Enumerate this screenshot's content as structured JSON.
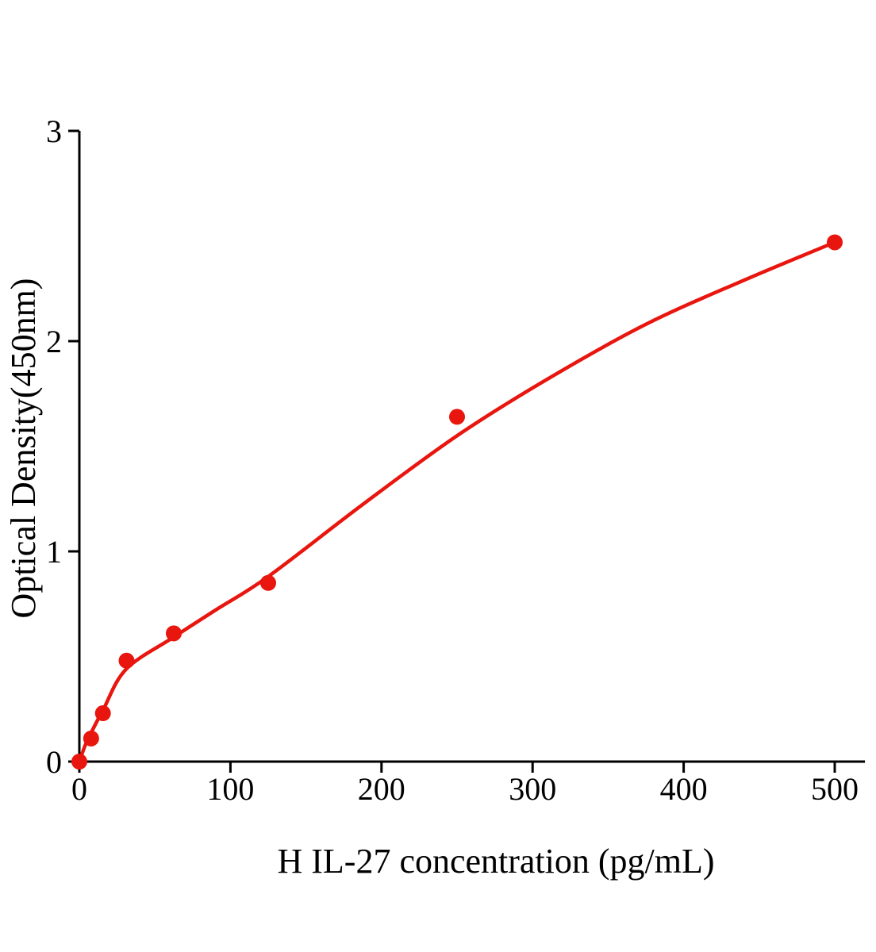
{
  "chart_data": {
    "type": "scatter",
    "title": "",
    "xlabel": "H IL-27 concentration (pg/mL)",
    "ylabel": "Optical Density(450nm)",
    "x_ticks": [
      0,
      100,
      200,
      300,
      400,
      500
    ],
    "y_ticks": [
      0,
      1,
      2,
      3
    ],
    "xlim": [
      0,
      520
    ],
    "ylim": [
      0,
      3
    ],
    "grid": false,
    "legend": "none",
    "axis_color": "#000000",
    "point_color": "#e8160e",
    "curve_color": "#e8160e",
    "points": [
      {
        "x": 0,
        "y": 0.0
      },
      {
        "x": 7.8,
        "y": 0.11
      },
      {
        "x": 15.6,
        "y": 0.23
      },
      {
        "x": 31.25,
        "y": 0.48
      },
      {
        "x": 62.5,
        "y": 0.61
      },
      {
        "x": 125,
        "y": 0.85
      },
      {
        "x": 250,
        "y": 1.64
      },
      {
        "x": 500,
        "y": 2.47
      }
    ],
    "fit_curve_samples": [
      [
        0,
        0.0
      ],
      [
        4,
        0.08
      ],
      [
        8,
        0.14
      ],
      [
        16,
        0.25
      ],
      [
        31,
        0.44
      ],
      [
        62,
        0.59
      ],
      [
        90,
        0.72
      ],
      [
        125,
        0.88
      ],
      [
        187,
        1.22
      ],
      [
        250,
        1.55
      ],
      [
        310,
        1.82
      ],
      [
        375,
        2.08
      ],
      [
        440,
        2.29
      ],
      [
        500,
        2.47
      ]
    ]
  }
}
